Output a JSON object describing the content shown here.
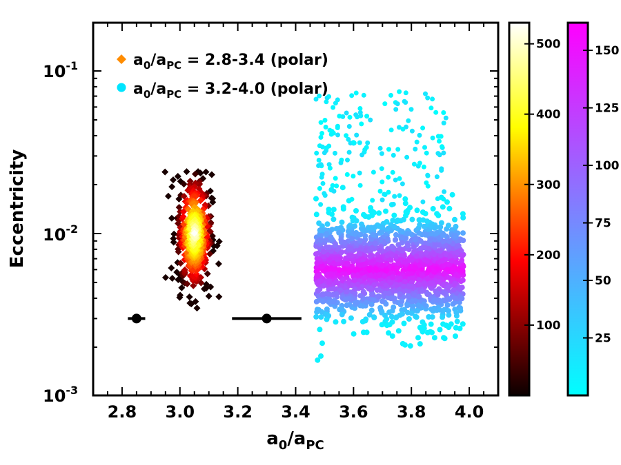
{
  "chart_data": {
    "type": "scatter",
    "xlabel": {
      "base": "a",
      "sub1": "0",
      "slash": "/a",
      "sub2": "PC"
    },
    "ylabel": "Eccentricity",
    "xlim": [
      2.7,
      4.1
    ],
    "ylim": [
      0.001,
      0.2
    ],
    "yscale": "log",
    "x_ticks": [
      2.8,
      3.0,
      3.2,
      3.4,
      3.6,
      3.8,
      4.0
    ],
    "x_tick_labels": [
      "2.8",
      "3.0",
      "3.2",
      "3.4",
      "3.6",
      "3.8",
      "4.0"
    ],
    "y_ticks": [
      {
        "value": 0.1,
        "base": "10",
        "exp": "-1"
      },
      {
        "value": 0.01,
        "base": "10",
        "exp": "-2"
      },
      {
        "value": 0.001,
        "base": "10",
        "exp": "-3"
      }
    ],
    "series": [
      {
        "name": "a0/aPC = 2.8-3.4 (polar)",
        "legend": {
          "pre": "a",
          "sub1": "0",
          "mid": "/a",
          "sub2": "PC",
          "post": " = 2.8-3.4 (polar)"
        },
        "marker": "diamond",
        "legend_color": "#ff8c00",
        "colormap": "hot",
        "x_center": 3.05,
        "x_spread": 0.03,
        "y_center": 0.01,
        "log_spread": 0.18,
        "count": 430
      },
      {
        "name": "a0/aPC = 3.2-4.0 (polar)",
        "legend": {
          "pre": "a",
          "sub1": "0",
          "mid": "/a",
          "sub2": "PC",
          "post": " = 3.2-4.0 (polar)"
        },
        "marker": "circle",
        "legend_color": "#00e5ff",
        "colormap": "cool",
        "x_range": [
          3.47,
          3.98
        ],
        "y_center": 0.006,
        "log_spread": 0.16,
        "count": 1700
      }
    ],
    "error_bars": [
      {
        "x": 2.85,
        "y": 0.003,
        "xerr": 0.03
      },
      {
        "x": 3.3,
        "y": 0.003,
        "xerr": 0.12
      }
    ],
    "colorbars": [
      {
        "name": "hot",
        "ticks": [
          100,
          200,
          300,
          400,
          500
        ],
        "tick_labels": [
          "100",
          "200",
          "300",
          "400",
          "500"
        ],
        "range": [
          0,
          530
        ]
      },
      {
        "name": "cool",
        "ticks": [
          25,
          50,
          75,
          100,
          125,
          150
        ],
        "tick_labels": [
          "25",
          "50",
          "75",
          "100",
          "125",
          "150"
        ],
        "range": [
          0,
          162
        ]
      }
    ]
  }
}
